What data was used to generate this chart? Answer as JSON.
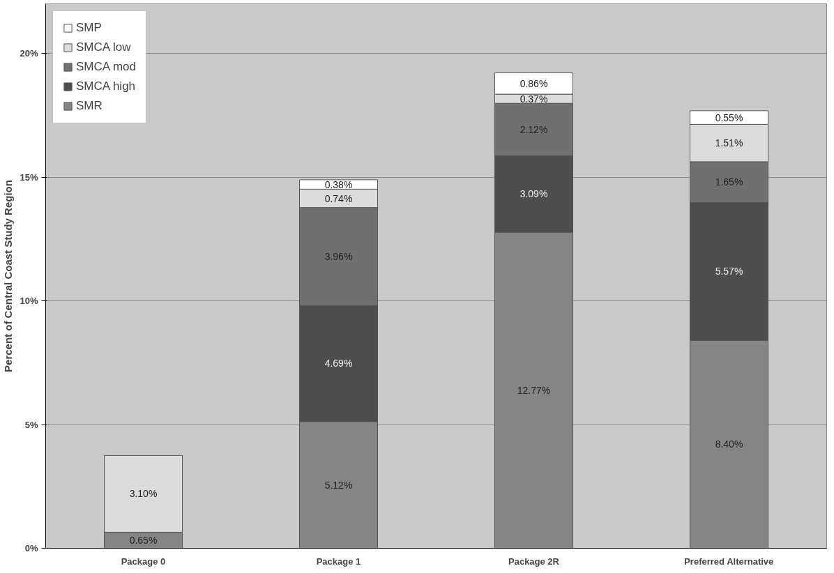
{
  "chart_data": {
    "type": "bar",
    "stacked": true,
    "ylabel": "Percent of Central Coast Study Region",
    "categories": [
      "Package 0",
      "Package 1",
      "Package 2R",
      "Preferred Alternative"
    ],
    "ylim": [
      0,
      22
    ],
    "yticks": [
      {
        "value": 0,
        "label": "0%"
      },
      {
        "value": 5,
        "label": "5%"
      },
      {
        "value": 10,
        "label": "10%"
      },
      {
        "value": 15,
        "label": "15%"
      },
      {
        "value": 20,
        "label": "20%"
      }
    ],
    "grid": "y",
    "legend": "top left",
    "data_labels": true,
    "series": [
      {
        "name": "SMR",
        "color": "#858585",
        "values": [
          0.65,
          5.12,
          12.77,
          8.4
        ],
        "value_labels": [
          "0.65%",
          "5.12%",
          "12.77%",
          "8.40%"
        ]
      },
      {
        "name": "SMCA high",
        "color": "#4d4d4d",
        "values": [
          null,
          4.69,
          3.09,
          5.57
        ],
        "value_labels": [
          null,
          "4.69%",
          "3.09%",
          "5.57%"
        ]
      },
      {
        "name": "SMCA mod",
        "color": "#707070",
        "values": [
          null,
          3.96,
          2.12,
          1.65
        ],
        "value_labels": [
          null,
          "3.96%",
          "2.12%",
          "1.65%"
        ]
      },
      {
        "name": "SMCA low",
        "color": "#dcdcdc",
        "values": [
          3.1,
          0.74,
          0.37,
          1.51
        ],
        "value_labels": [
          "3.10%",
          "0.74%",
          "0.37%",
          "1.51%"
        ]
      },
      {
        "name": "SMP",
        "color": "#ffffff",
        "values": [
          null,
          0.38,
          0.86,
          0.55
        ],
        "value_labels": [
          null,
          "0.38%",
          "0.86%",
          "0.55%"
        ]
      }
    ]
  }
}
